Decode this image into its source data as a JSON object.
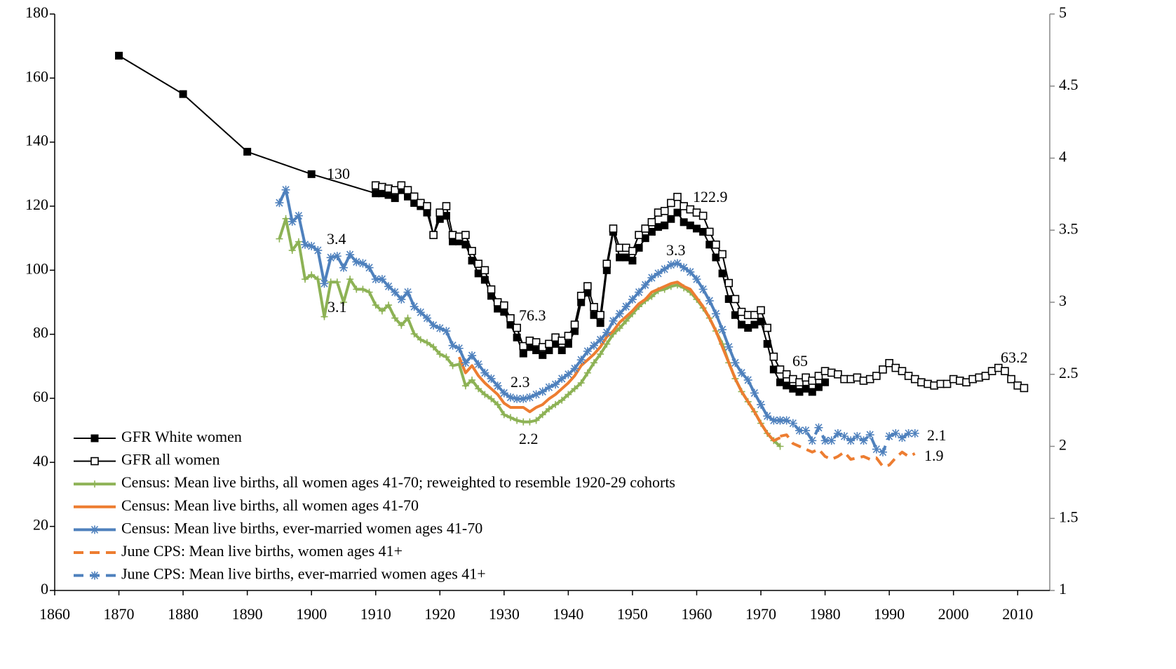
{
  "chart_data": {
    "type": "line",
    "xlim": [
      1860,
      2015
    ],
    "xticks": [
      1860,
      1870,
      1880,
      1890,
      1900,
      1910,
      1920,
      1930,
      1940,
      1950,
      1960,
      1970,
      1980,
      1990,
      2000,
      2010
    ],
    "ylim": [
      0,
      180
    ],
    "yticks": [
      0,
      20,
      40,
      60,
      80,
      100,
      120,
      140,
      160,
      180
    ],
    "y2lim": [
      1,
      5
    ],
    "y2ticks": [
      1,
      1.5,
      2,
      2.5,
      3,
      3.5,
      4,
      4.5,
      5
    ],
    "grid": false,
    "legend": "lower-left",
    "series": [
      {
        "name": "GFR White women",
        "color": "#000000",
        "marker": "square",
        "line_style": "solid",
        "axis": "y",
        "x": [
          1870,
          1880,
          1890,
          1900,
          1910,
          1911,
          1912,
          1913,
          1914,
          1915,
          1916,
          1917,
          1918,
          1919,
          1920,
          1921,
          1922,
          1923,
          1924,
          1925,
          1926,
          1927,
          1928,
          1929,
          1930,
          1931,
          1932,
          1933,
          1934,
          1935,
          1936,
          1937,
          1938,
          1939,
          1940,
          1941,
          1942,
          1943,
          1944,
          1945,
          1946,
          1947,
          1948,
          1949,
          1950,
          1951,
          1952,
          1953,
          1954,
          1955,
          1956,
          1957,
          1958,
          1959,
          1960,
          1961,
          1962,
          1963,
          1964,
          1965,
          1966,
          1967,
          1968,
          1969,
          1970,
          1971,
          1972,
          1973,
          1974,
          1975,
          1976,
          1977,
          1978,
          1979,
          1980
        ],
        "values": [
          167,
          155,
          137,
          130,
          124,
          124,
          123.5,
          122.5,
          125,
          123,
          121,
          120,
          118,
          111,
          116,
          117,
          109,
          109,
          108,
          103,
          99,
          97,
          92,
          88,
          87,
          83,
          79,
          74,
          76,
          75,
          73.5,
          75,
          77,
          75,
          77,
          81,
          90,
          93,
          86,
          83.5,
          100,
          112,
          104,
          104,
          103,
          107,
          110,
          112,
          113.5,
          114,
          116,
          118,
          115,
          114,
          113,
          112,
          108,
          104,
          99,
          91,
          86,
          83,
          82,
          83,
          84,
          77,
          69,
          65,
          64,
          63,
          62,
          63,
          62,
          63.5,
          65
        ]
      },
      {
        "name": "GFR all women",
        "color": "#000000",
        "marker": "square-open",
        "line_style": "solid",
        "axis": "y",
        "x": [
          1910,
          1911,
          1912,
          1913,
          1914,
          1915,
          1916,
          1917,
          1918,
          1919,
          1920,
          1921,
          1922,
          1923,
          1924,
          1925,
          1926,
          1927,
          1928,
          1929,
          1930,
          1931,
          1932,
          1933,
          1934,
          1935,
          1936,
          1937,
          1938,
          1939,
          1940,
          1941,
          1942,
          1943,
          1944,
          1945,
          1946,
          1947,
          1948,
          1949,
          1950,
          1951,
          1952,
          1953,
          1954,
          1955,
          1956,
          1957,
          1958,
          1959,
          1960,
          1961,
          1962,
          1963,
          1964,
          1965,
          1966,
          1967,
          1968,
          1969,
          1970,
          1971,
          1972,
          1973,
          1974,
          1975,
          1976,
          1977,
          1978,
          1979,
          1980,
          1981,
          1982,
          1983,
          1984,
          1985,
          1986,
          1987,
          1988,
          1989,
          1990,
          1991,
          1992,
          1993,
          1994,
          1995,
          1996,
          1997,
          1998,
          1999,
          2000,
          2001,
          2002,
          2003,
          2004,
          2005,
          2006,
          2007,
          2008,
          2009,
          2010,
          2011
        ],
        "values": [
          126.5,
          126,
          125.5,
          125,
          126.5,
          125,
          123,
          121,
          120,
          111,
          118,
          120,
          111,
          110.5,
          111,
          106,
          102,
          100,
          94,
          90,
          89,
          85,
          82,
          76.3,
          78,
          77.5,
          76,
          77,
          79,
          78,
          79.5,
          83,
          92,
          95,
          88.5,
          86,
          102,
          113,
          107,
          107,
          106,
          111,
          113,
          115,
          118,
          118.5,
          121,
          122.9,
          120,
          119,
          118,
          117,
          112,
          108,
          105,
          96,
          91,
          87,
          86,
          86,
          87.5,
          82,
          73,
          69,
          67.5,
          66,
          65,
          66.5,
          65.5,
          67,
          68.5,
          68,
          67.5,
          66,
          66,
          66.5,
          65.5,
          66,
          67,
          69,
          71,
          69.5,
          68.5,
          67,
          66,
          65,
          64.5,
          64,
          64.5,
          64.5,
          66,
          65.5,
          65,
          66,
          66.5,
          67,
          68.5,
          69.5,
          68.5,
          66,
          64,
          63.2
        ]
      },
      {
        "name": "Census: Mean live births, all women ages 41-70; reweighted to resemble 1920-29 cohorts",
        "color": "#8db255",
        "marker": "plus",
        "line_style": "solid",
        "axis": "y2",
        "x": [
          1895,
          1896,
          1897,
          1898,
          1899,
          1900,
          1901,
          1902,
          1903,
          1904,
          1905,
          1906,
          1907,
          1908,
          1909,
          1910,
          1911,
          1912,
          1913,
          1914,
          1915,
          1916,
          1917,
          1918,
          1919,
          1920,
          1921,
          1922,
          1923,
          1924,
          1925,
          1926,
          1927,
          1928,
          1929,
          1930,
          1931,
          1932,
          1933,
          1934,
          1935,
          1936,
          1937,
          1938,
          1939,
          1940,
          1941,
          1942,
          1943,
          1944,
          1945,
          1946,
          1947,
          1948,
          1949,
          1950,
          1951,
          1952,
          1953,
          1954,
          1955,
          1956,
          1957,
          1958,
          1959,
          1960,
          1961,
          1962,
          1963,
          1964,
          1965,
          1966,
          1967,
          1968,
          1969,
          1970,
          1971,
          1972,
          1973
        ],
        "values": [
          3.44,
          3.58,
          3.36,
          3.42,
          3.16,
          3.19,
          3.16,
          2.9,
          3.14,
          3.14,
          3.0,
          3.16,
          3.09,
          3.09,
          3.07,
          2.98,
          2.94,
          2.98,
          2.89,
          2.84,
          2.89,
          2.78,
          2.74,
          2.72,
          2.69,
          2.64,
          2.62,
          2.56,
          2.57,
          2.42,
          2.46,
          2.4,
          2.36,
          2.33,
          2.29,
          2.22,
          2.2,
          2.18,
          2.17,
          2.17,
          2.18,
          2.22,
          2.26,
          2.29,
          2.32,
          2.36,
          2.4,
          2.44,
          2.51,
          2.58,
          2.64,
          2.71,
          2.78,
          2.82,
          2.87,
          2.92,
          2.97,
          3.01,
          3.04,
          3.08,
          3.09,
          3.11,
          3.12,
          3.1,
          3.07,
          3.02,
          2.96,
          2.89,
          2.8,
          2.71,
          2.58,
          2.47,
          2.38,
          2.31,
          2.24,
          2.16,
          2.09,
          2.04,
          2.0
        ]
      },
      {
        "name": "Census: Mean live births, all women ages 41-70",
        "color": "#ed7d31",
        "marker": "none",
        "line_style": "solid",
        "axis": "y2",
        "x": [
          1923,
          1924,
          1925,
          1926,
          1927,
          1928,
          1929,
          1930,
          1931,
          1932,
          1933,
          1934,
          1935,
          1936,
          1937,
          1938,
          1939,
          1940,
          1941,
          1942,
          1943,
          1944,
          1945,
          1946,
          1947,
          1948,
          1949,
          1950,
          1951,
          1952,
          1953,
          1954,
          1955,
          1956,
          1957,
          1958,
          1959,
          1960,
          1961,
          1962,
          1963,
          1964,
          1965,
          1966,
          1967,
          1968,
          1969,
          1970,
          1971,
          1972,
          1973
        ],
        "values": [
          2.62,
          2.51,
          2.56,
          2.49,
          2.44,
          2.4,
          2.36,
          2.3,
          2.27,
          2.27,
          2.27,
          2.24,
          2.27,
          2.29,
          2.33,
          2.36,
          2.4,
          2.44,
          2.49,
          2.56,
          2.6,
          2.64,
          2.69,
          2.76,
          2.8,
          2.86,
          2.9,
          2.94,
          2.99,
          3.02,
          3.07,
          3.09,
          3.11,
          3.13,
          3.14,
          3.11,
          3.09,
          3.03,
          2.97,
          2.89,
          2.8,
          2.69,
          2.58,
          2.47,
          2.38,
          2.31,
          2.24,
          2.16,
          2.09,
          2.04,
          2.06
        ]
      },
      {
        "name": "Census: Mean live births, ever-married women ages 41-70",
        "color": "#4f81bd",
        "marker": "star",
        "line_style": "solid",
        "axis": "y2",
        "x": [
          1895,
          1896,
          1897,
          1898,
          1899,
          1900,
          1901,
          1902,
          1903,
          1904,
          1905,
          1906,
          1907,
          1908,
          1909,
          1910,
          1911,
          1912,
          1913,
          1914,
          1915,
          1916,
          1917,
          1918,
          1919,
          1920,
          1921,
          1922,
          1923,
          1924,
          1925,
          1926,
          1927,
          1928,
          1929,
          1930,
          1931,
          1932,
          1933,
          1934,
          1935,
          1936,
          1937,
          1938,
          1939,
          1940,
          1941,
          1942,
          1943,
          1944,
          1945,
          1946,
          1947,
          1948,
          1949,
          1950,
          1951,
          1952,
          1953,
          1954,
          1955,
          1956,
          1957,
          1958,
          1959,
          1960,
          1961,
          1962,
          1963,
          1964,
          1965,
          1966,
          1967,
          1968,
          1969,
          1970,
          1971,
          1972,
          1973
        ],
        "values": [
          3.69,
          3.78,
          3.56,
          3.6,
          3.4,
          3.39,
          3.36,
          3.13,
          3.31,
          3.32,
          3.24,
          3.33,
          3.28,
          3.27,
          3.24,
          3.16,
          3.16,
          3.11,
          3.07,
          3.02,
          3.07,
          2.97,
          2.93,
          2.89,
          2.84,
          2.82,
          2.8,
          2.7,
          2.68,
          2.58,
          2.63,
          2.57,
          2.51,
          2.47,
          2.42,
          2.37,
          2.34,
          2.33,
          2.33,
          2.34,
          2.36,
          2.38,
          2.41,
          2.43,
          2.47,
          2.5,
          2.54,
          2.6,
          2.66,
          2.7,
          2.74,
          2.79,
          2.87,
          2.92,
          2.97,
          3.02,
          3.07,
          3.12,
          3.17,
          3.2,
          3.23,
          3.26,
          3.27,
          3.24,
          3.21,
          3.16,
          3.09,
          3.01,
          2.92,
          2.81,
          2.69,
          2.58,
          2.51,
          2.46,
          2.37,
          2.29,
          2.21,
          2.18,
          2.18
        ]
      },
      {
        "name": "June CPS: Mean live births, women ages 41+",
        "color": "#ed7d31",
        "marker": "none",
        "line_style": "dashed",
        "axis": "y2",
        "x": [
          1973,
          1974,
          1975,
          1976,
          1977,
          1978,
          1979,
          1980,
          1981,
          1982,
          1983,
          1984,
          1985,
          1986,
          1987,
          1988,
          1989,
          1990,
          1991,
          1992,
          1993,
          1994
        ],
        "values": [
          2.07,
          2.08,
          2.02,
          2.0,
          1.98,
          1.96,
          1.98,
          1.93,
          1.91,
          1.93,
          1.96,
          1.91,
          1.92,
          1.93,
          1.91,
          1.92,
          1.86,
          1.87,
          1.92,
          1.96,
          1.93,
          1.95
        ]
      },
      {
        "name": "June CPS: Mean live births, ever-married women ages 41+",
        "color": "#4f81bd",
        "marker": "star",
        "line_style": "dashed",
        "axis": "y2",
        "x": [
          1973,
          1974,
          1975,
          1976,
          1977,
          1978,
          1979,
          1980,
          1981,
          1982,
          1983,
          1984,
          1985,
          1986,
          1987,
          1988,
          1989,
          1990,
          1991,
          1992,
          1993,
          1994
        ],
        "values": [
          2.18,
          2.18,
          2.16,
          2.11,
          2.11,
          2.04,
          2.13,
          2.04,
          2.04,
          2.09,
          2.07,
          2.04,
          2.07,
          2.04,
          2.08,
          1.98,
          1.96,
          2.07,
          2.09,
          2.06,
          2.09,
          2.09
        ]
      }
    ],
    "annotations": [
      "130",
      "3.4",
      "3.1",
      "76.3",
      "2.3",
      "2.2",
      "3.3",
      "122.9",
      "65",
      "2.1",
      "1.9",
      "63.2"
    ]
  }
}
